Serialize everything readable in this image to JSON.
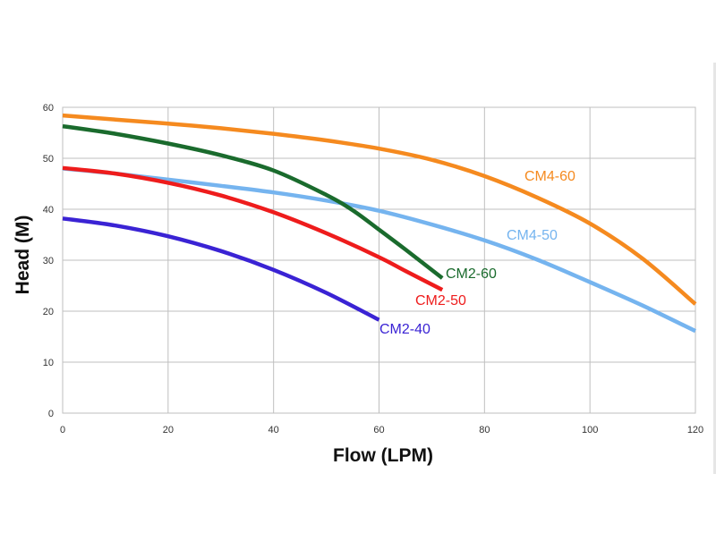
{
  "chart_data": {
    "type": "line",
    "xlabel": "Flow (LPM)",
    "ylabel": "Head (M)",
    "xlim": [
      0,
      120
    ],
    "ylim": [
      0,
      60
    ],
    "xticks": [
      "0",
      "20",
      "40",
      "60",
      "80",
      "100",
      "120"
    ],
    "yticks": [
      "0",
      "10",
      "20",
      "30",
      "40",
      "50",
      "60"
    ],
    "grid": true,
    "legend": "inline labels next to each curve",
    "series": [
      {
        "name": "CM4-60",
        "color": "#f58a1f",
        "x": [
          0,
          10,
          20,
          30,
          40,
          50,
          60,
          70,
          80,
          90,
          100,
          110,
          120
        ],
        "y": [
          58.4,
          57.6,
          56.8,
          55.9,
          54.8,
          53.5,
          51.9,
          49.7,
          46.5,
          42.3,
          37.2,
          30.3,
          21.4
        ]
      },
      {
        "name": "CM4-50",
        "color": "#75b4ef",
        "x": [
          0,
          10,
          20,
          30,
          40,
          50,
          60,
          70,
          80,
          90,
          100,
          110,
          120
        ],
        "y": [
          48.0,
          47.0,
          45.8,
          44.6,
          43.3,
          41.7,
          39.7,
          37.0,
          33.9,
          30.1,
          25.7,
          21.1,
          16.1
        ]
      },
      {
        "name": "CM2-60",
        "color": "#1a6b2d",
        "x": [
          0,
          10,
          20,
          30,
          40,
          50,
          55,
          60,
          65,
          72
        ],
        "y": [
          56.3,
          54.8,
          52.9,
          50.6,
          47.6,
          42.8,
          39.8,
          36.0,
          32.1,
          26.5
        ]
      },
      {
        "name": "CM2-50",
        "color": "#ee1c1c",
        "x": [
          0,
          10,
          20,
          30,
          40,
          50,
          60,
          65,
          72
        ],
        "y": [
          48.1,
          47.0,
          45.2,
          42.7,
          39.4,
          35.3,
          30.6,
          27.9,
          24.2
        ]
      },
      {
        "name": "CM2-40",
        "color": "#3a23d4",
        "x": [
          0,
          10,
          20,
          30,
          40,
          50,
          60
        ],
        "y": [
          38.2,
          36.8,
          34.7,
          31.8,
          28.1,
          23.6,
          18.3
        ]
      }
    ]
  }
}
